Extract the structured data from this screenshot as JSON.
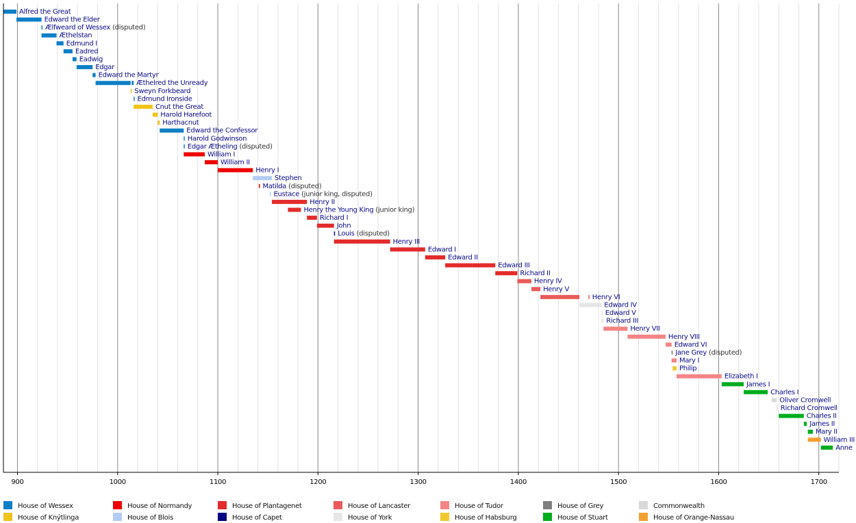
{
  "chart_data": {
    "type": "timeline",
    "xlim": [
      886,
      1720
    ],
    "xticks": [
      900,
      1000,
      1100,
      1200,
      1300,
      1400,
      1500,
      1600,
      1700
    ],
    "minor_xticks": [
      920,
      940,
      960,
      980,
      1020,
      1040,
      1060,
      1080,
      1120,
      1140,
      1160,
      1180,
      1220,
      1240,
      1260,
      1280,
      1320,
      1340,
      1360,
      1380,
      1420,
      1440,
      1460,
      1480,
      1520,
      1540,
      1560,
      1580,
      1620,
      1640,
      1660,
      1680,
      1720
    ],
    "grid": true,
    "houses": [
      {
        "name": "House of Wessex",
        "color": "#0e7fc6"
      },
      {
        "name": "House of Knýtlinga",
        "color": "#f0c419"
      },
      {
        "name": "House of Normandy",
        "color": "#ee0000"
      },
      {
        "name": "House of Blois",
        "color": "#b3ccf2"
      },
      {
        "name": "House of Plantagenet",
        "color": "#e32b2b"
      },
      {
        "name": "House of Capet",
        "color": "#000080"
      },
      {
        "name": "House of Lancaster",
        "color": "#ea5b5b"
      },
      {
        "name": "House of York",
        "color": "#e6e6e6"
      },
      {
        "name": "House of Tudor",
        "color": "#f48585"
      },
      {
        "name": "House of Habsburg",
        "color": "#f2c92c"
      },
      {
        "name": "House of Grey",
        "color": "#7f7f7f"
      },
      {
        "name": "House of Stuart",
        "color": "#00ad1f"
      },
      {
        "name": "Commonwealth",
        "color": "#d9d9d9"
      },
      {
        "name": "House of Orange-Nassau",
        "color": "#f2a030"
      }
    ],
    "monarchs": [
      {
        "name": "Alfred the Great",
        "house": 0,
        "spans": [
          [
            871,
            899
          ]
        ]
      },
      {
        "name": "Edward the Elder",
        "house": 0,
        "spans": [
          [
            899,
            924
          ]
        ]
      },
      {
        "name": "Ælfweard of Wessex",
        "note": "(disputed)",
        "house": 0,
        "spans": [
          [
            924,
            924
          ]
        ]
      },
      {
        "name": "Æthelstan",
        "house": 0,
        "spans": [
          [
            924,
            939
          ]
        ]
      },
      {
        "name": "Edmund I",
        "house": 0,
        "spans": [
          [
            939,
            946
          ]
        ]
      },
      {
        "name": "Eadred",
        "house": 0,
        "spans": [
          [
            946,
            955
          ]
        ]
      },
      {
        "name": "Eadwig",
        "house": 0,
        "spans": [
          [
            955,
            959
          ]
        ]
      },
      {
        "name": "Edgar",
        "house": 0,
        "spans": [
          [
            959,
            975
          ]
        ]
      },
      {
        "name": "Edward the Martyr",
        "house": 0,
        "spans": [
          [
            975,
            978
          ]
        ]
      },
      {
        "name": "Æthelred the Unready",
        "house": 0,
        "spans": [
          [
            978,
            1013
          ],
          [
            1014,
            1016
          ]
        ]
      },
      {
        "name": "Sweyn Forkbeard",
        "house": 1,
        "spans": [
          [
            1013,
            1014
          ]
        ]
      },
      {
        "name": "Edmund Ironside",
        "house": 0,
        "spans": [
          [
            1016,
            1016
          ]
        ]
      },
      {
        "name": "Cnut the Great",
        "house": 1,
        "spans": [
          [
            1016,
            1035
          ]
        ]
      },
      {
        "name": "Harold Harefoot",
        "house": 1,
        "spans": [
          [
            1035,
            1040
          ]
        ]
      },
      {
        "name": "Harthacnut",
        "house": 1,
        "spans": [
          [
            1040,
            1042
          ]
        ]
      },
      {
        "name": "Edward the Confessor",
        "house": 0,
        "spans": [
          [
            1042,
            1066
          ]
        ]
      },
      {
        "name": "Harold Godwinson",
        "house": 0,
        "spans": [
          [
            1066,
            1066
          ]
        ]
      },
      {
        "name": "Edgar Ætheling",
        "note": "(disputed)",
        "house": 0,
        "spans": [
          [
            1066,
            1066
          ]
        ]
      },
      {
        "name": "William I",
        "house": 2,
        "spans": [
          [
            1066,
            1087
          ]
        ]
      },
      {
        "name": "William II",
        "house": 2,
        "spans": [
          [
            1087,
            1100
          ]
        ]
      },
      {
        "name": "Henry I",
        "house": 2,
        "spans": [
          [
            1100,
            1135
          ]
        ]
      },
      {
        "name": "Stephen",
        "house": 3,
        "spans": [
          [
            1135,
            1154
          ]
        ]
      },
      {
        "name": "Matilda",
        "note": "(disputed)",
        "house": 2,
        "spans": [
          [
            1141,
            1141
          ]
        ]
      },
      {
        "name": "Eustace",
        "note": "(junior king, disputed)",
        "house": 3,
        "spans": [
          [
            1152,
            1153
          ]
        ]
      },
      {
        "name": "Henry II",
        "house": 4,
        "spans": [
          [
            1154,
            1189
          ]
        ]
      },
      {
        "name": "Henry the Young King",
        "note": "(junior king)",
        "house": 4,
        "spans": [
          [
            1170,
            1183
          ]
        ]
      },
      {
        "name": "Richard I",
        "house": 4,
        "spans": [
          [
            1189,
            1199
          ]
        ]
      },
      {
        "name": "John",
        "house": 4,
        "spans": [
          [
            1199,
            1216
          ]
        ]
      },
      {
        "name": "Louis",
        "note": "(disputed)",
        "house": 5,
        "spans": [
          [
            1216,
            1217
          ]
        ]
      },
      {
        "name": "Henry III",
        "house": 4,
        "spans": [
          [
            1216,
            1272
          ]
        ]
      },
      {
        "name": "Edward I",
        "house": 4,
        "spans": [
          [
            1272,
            1307
          ]
        ]
      },
      {
        "name": "Edward II",
        "house": 4,
        "spans": [
          [
            1307,
            1327
          ]
        ]
      },
      {
        "name": "Edward III",
        "house": 4,
        "spans": [
          [
            1327,
            1377
          ]
        ]
      },
      {
        "name": "Richard II",
        "house": 4,
        "spans": [
          [
            1377,
            1399
          ]
        ]
      },
      {
        "name": "Henry IV",
        "house": 6,
        "spans": [
          [
            1399,
            1413
          ]
        ]
      },
      {
        "name": "Henry V",
        "house": 6,
        "spans": [
          [
            1413,
            1422
          ]
        ]
      },
      {
        "name": "Henry VI",
        "house": 6,
        "spans": [
          [
            1422,
            1461
          ],
          [
            1470,
            1471
          ]
        ]
      },
      {
        "name": "Edward IV",
        "house": 7,
        "spans": [
          [
            1461,
            1483
          ]
        ]
      },
      {
        "name": "Edward V",
        "house": 7,
        "spans": [
          [
            1483,
            1483
          ]
        ]
      },
      {
        "name": "Richard III",
        "house": 7,
        "spans": [
          [
            1483,
            1485
          ]
        ]
      },
      {
        "name": "Henry VII",
        "house": 8,
        "spans": [
          [
            1485,
            1509
          ]
        ]
      },
      {
        "name": "Henry VIII",
        "house": 8,
        "spans": [
          [
            1509,
            1547
          ]
        ]
      },
      {
        "name": "Edward VI",
        "house": 8,
        "spans": [
          [
            1547,
            1553
          ]
        ]
      },
      {
        "name": "Jane Grey",
        "note": "(disputed)",
        "house": 10,
        "spans": [
          [
            1553,
            1553
          ]
        ]
      },
      {
        "name": "Mary I",
        "house": 8,
        "spans": [
          [
            1553,
            1558
          ]
        ]
      },
      {
        "name": "Philip",
        "house": 9,
        "spans": [
          [
            1554,
            1558
          ]
        ]
      },
      {
        "name": "Elizabeth I",
        "house": 8,
        "spans": [
          [
            1558,
            1603
          ]
        ]
      },
      {
        "name": "James I",
        "house": 11,
        "spans": [
          [
            1603,
            1625
          ]
        ]
      },
      {
        "name": "Charles I",
        "house": 11,
        "spans": [
          [
            1625,
            1649
          ]
        ]
      },
      {
        "name": "Oliver Cromwell",
        "house": 12,
        "spans": [
          [
            1653,
            1658
          ]
        ]
      },
      {
        "name": "Richard Cromwell",
        "house": 12,
        "spans": [
          [
            1658,
            1659
          ]
        ]
      },
      {
        "name": "Charles II",
        "house": 11,
        "spans": [
          [
            1660,
            1685
          ]
        ]
      },
      {
        "name": "James II",
        "house": 11,
        "spans": [
          [
            1685,
            1688
          ]
        ]
      },
      {
        "name": "Mary II",
        "house": 11,
        "spans": [
          [
            1689,
            1694
          ]
        ]
      },
      {
        "name": "William III",
        "house": 13,
        "spans": [
          [
            1689,
            1702
          ]
        ]
      },
      {
        "name": "Anne",
        "house": 11,
        "spans": [
          [
            1702,
            1714
          ]
        ]
      }
    ]
  }
}
